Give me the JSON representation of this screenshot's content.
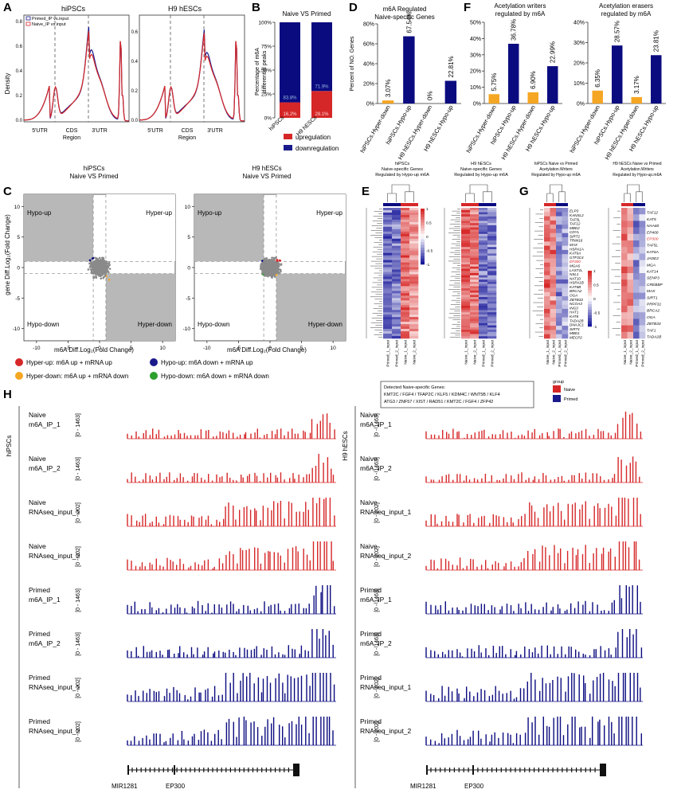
{
  "panel_letters": {
    "A": "A",
    "B": "B",
    "C": "C",
    "D": "D",
    "E": "E",
    "F": "F",
    "G": "G",
    "H": "H"
  },
  "colors": {
    "red": "#d62728",
    "blue": "#1a1a8c",
    "orange": "#f5a623",
    "gray": "#b8b8b8",
    "darkblue": "#0b0b80"
  },
  "panelA": {
    "titles": [
      "hiPSCs",
      "H9 hESCs"
    ],
    "ylabel": "Density",
    "legend": [
      "Primed_IP vs.input",
      "Naive_IP vs.input"
    ],
    "xlabels": {
      "utr5": "5'UTR",
      "cds1": "CDS",
      "cds2": "Region",
      "utr3": "3'UTR"
    },
    "yticks_left": [
      "0.8",
      "0.6",
      "0.4",
      "0.2",
      "0.0"
    ],
    "yticks_right": [
      "0.6",
      "0.4",
      "0.2",
      "0.0"
    ]
  },
  "panelB": {
    "title": "Naive VS Primed",
    "ylabel1": "Percentage of m6A",
    "ylabel2": "differential peaks",
    "yticks": [
      "100%",
      "75%",
      "50%",
      "25%",
      "0%"
    ],
    "categories": [
      "hiPSCs",
      "H9 hESCs"
    ],
    "down_labels": [
      "83.8%",
      "71.9%"
    ],
    "up_labels": [
      "16.2%",
      "28.1%"
    ],
    "legend_up": "upregulation",
    "legend_down": "downregulation"
  },
  "chart_data": [
    {
      "type": "bar",
      "title": "Naive VS Primed",
      "ylabel": "Percentage of m6A differential peaks",
      "categories": [
        "hiPSCs",
        "H9 hESCs"
      ],
      "series": [
        {
          "name": "upregulation",
          "values": [
            16.2,
            28.1
          ]
        },
        {
          "name": "downregulation",
          "values": [
            83.8,
            71.9
          ]
        }
      ],
      "ylim": [
        0,
        100
      ]
    },
    {
      "type": "bar",
      "title": "m6A Regulated Naive-specific Genes",
      "ylabel": "Percent of NO. Genes",
      "categories": [
        "hiPSCs.Hyper-down",
        "hiPSCs.Hypo-up",
        "H9 hESCs.Hyper-down",
        "H9 hESCs.Hypo-up"
      ],
      "values": [
        3.07,
        67.54,
        0,
        22.81
      ],
      "ylim": [
        0,
        80
      ]
    },
    {
      "type": "bar",
      "title": "Acetylation writers regulated by m6A",
      "categories": [
        "hiPSCs.Hyper-down",
        "hiPSCs.Hypo-up",
        "H9 hESCs.Hyper-down",
        "H9 hESCs.Hypo-up"
      ],
      "values": [
        5.75,
        36.78,
        6.9,
        22.99
      ],
      "ylim": [
        0,
        50
      ]
    },
    {
      "type": "bar",
      "title": "Acetylation erasers regulated by m6A",
      "categories": [
        "hiPSCs.Hyper-down",
        "hiPSCs.Hypo-up",
        "H9 hESCs.Hyper-down",
        "H9 hESCs.Hypo-up"
      ],
      "values": [
        6.35,
        28.57,
        3.17,
        23.81
      ],
      "ylim": [
        0,
        40
      ]
    }
  ],
  "panelD": {
    "title1": "m6A Regulated",
    "title2": "Naive-specific Genes",
    "ylabel": "Percent of NO. Genes",
    "yticks": [
      "80%",
      "60%",
      "40%",
      "20%",
      "0%"
    ],
    "bar_labels": [
      "3.07%",
      "67.54%",
      "0%",
      "22.81%"
    ],
    "xcats": [
      "hiPSCs.Hyper-down",
      "hiPSCs.Hypo-up",
      "H9 hESCs.Hyper-down",
      "H9 hESCs.Hypo-up"
    ]
  },
  "panelF": {
    "title1a": "Acetylation writers",
    "title1b": "regulated by m6A",
    "title2a": "Acetylation erasers",
    "title2b": "regulated by m6A",
    "yticks1": [
      "50%",
      "40%",
      "30%",
      "20%",
      "10%",
      "0%"
    ],
    "yticks2": [
      "40%",
      "30%",
      "20%",
      "10%",
      "0%"
    ],
    "labels1": [
      "5.75%",
      "36.78%",
      "6.90%",
      "22.99%"
    ],
    "labels2": [
      "6.35%",
      "28.57%",
      "3.17%",
      "23.81%"
    ],
    "xcats": [
      "hiPSCs.Hyper-down",
      "hiPSCs.Hypo-up",
      "H9 hESCs.Hyper-down",
      "H9 hESCs.Hypo-up"
    ]
  },
  "panelC": {
    "title1a": "hiPSCs",
    "title1b": "Naive VS Primed",
    "title2a": "H9 hESCs",
    "title2b": "Naive VS Primed",
    "ylabel": "gene Diff.Log₂(Fold Change)",
    "xlabel": "m6A Diff.Log₂(Fold Change)",
    "quadrants": {
      "hypo_up": "Hypo-up",
      "hyper_up": "Hyper-up",
      "hypo_down": "Hypo-down",
      "hyper_down": "Hyper-down"
    },
    "xticks": [
      "-10",
      "-5",
      "0",
      "5",
      "10"
    ],
    "yticks": [
      "10",
      "5",
      "0",
      "-5",
      "-10"
    ],
    "legend": [
      "Hyper-up: m6A up + mRNA up",
      "Hypo-up: m6A down + mRNA up",
      "Hyper-down: m6A up + mRNA down",
      "Hypo-down: m6A down + mRNA down"
    ]
  },
  "panelE": {
    "title_left": [
      "hiPSCs",
      "Naive-specific Genes",
      "Regulated by Hypo-up m6A"
    ],
    "title_right": [
      "H9 hESCs",
      "Naive-specific Genes",
      "Regulated by Hypo-up m6A"
    ],
    "scale": [
      "1",
      "0.5",
      "0",
      "-0.5",
      "-1"
    ],
    "cols_left": [
      "Primed_1_input",
      "Primed_2_input",
      "Naive_1_input",
      "Naive_2_input"
    ],
    "cols_right": [
      "Naive_1_input",
      "Naive_2_input",
      "Primed_1_input",
      "Primed_2_input"
    ],
    "detected_title": "Detected Naive-specific Genes:",
    "detected_line1": "KMT2C / FGF4 / TFAP2C / KLF5 / KDM4C / WNT5B / KLF4",
    "detected_line2": "ATG3 / ZNF57 / XIST / RAD51 / KMT2C / FGF4 / ZFP42",
    "group_label": "group",
    "group_naive": "Naive",
    "group_primed": "Primed"
  },
  "panelG": {
    "title_left": [
      "hiPSCs Naive vs Primed",
      "Acetylation.Writers",
      "Regulated by Hypo-up m6A"
    ],
    "title_right": [
      "H9 hESCs Naive vs Primed",
      "Acetylation.Writers",
      "Regulated by Hypo-up.m6A"
    ],
    "genes_left": [
      "ELP3",
      "KANSL2",
      "TAF5L",
      "TAF12",
      "MBD2",
      "CDYL",
      "SIRT2",
      "TRIM16",
      "MAX",
      "HSPA1A",
      "KAT6A",
      "GTF3C4",
      "EP300",
      "MGA6",
      "LAST1L",
      "NSL1",
      "NAT10",
      "HSPA1B",
      "KAT6B",
      "BRCA2",
      "OGA",
      "ZBTB33",
      "NCOA3",
      "ING3",
      "HAT1",
      "KAT8",
      "TADA2B",
      "DNAJC1",
      "SIRT1",
      "MBD1",
      "MECP2"
    ],
    "genes_right": [
      "TAF12",
      "KAT5",
      "NAA60",
      "EP400",
      "EP300",
      "TAF5L",
      "KAT6A",
      "JADE2",
      "MGA",
      "KAT14",
      "SENP3",
      "CREBBP",
      "MAX",
      "SIRT1",
      "PRPF31",
      "BRCA2",
      "OGA",
      "ZBTB33",
      "TAF1",
      "TADA2B"
    ],
    "highlight": "EP300",
    "scale": [
      "1",
      "0.5",
      "0",
      "-0.5",
      "-1"
    ],
    "cols": [
      "Naive_1_input",
      "Naive_2_input",
      "Primed_1_input",
      "Primed_2_input"
    ]
  },
  "panelH": {
    "side_left": "hiPSCs",
    "side_right": "H9 hESCs",
    "tracks": [
      {
        "group": "Naive",
        "name": "m6A_IP_1",
        "range": "[0 - 1463]",
        "color": "red"
      },
      {
        "group": "Naive",
        "name": "m6A_IP_2",
        "range": "[0 - 1463]",
        "color": "red"
      },
      {
        "group": "Naive",
        "name": "RNAseq_input_1",
        "range": "[0 - 202]",
        "color": "red"
      },
      {
        "group": "Naive",
        "name": "RNAseq_input_2",
        "range": "[0 - 202]",
        "color": "red"
      },
      {
        "group": "Primed",
        "name": "m6A_IP_1",
        "range": "[0 - 1463]",
        "color": "blue"
      },
      {
        "group": "Primed",
        "name": "m6A_IP_2",
        "range": "[0 - 1463]",
        "color": "blue"
      },
      {
        "group": "Primed",
        "name": "RNAseq_input_1",
        "range": "[0 - 202]",
        "color": "blue"
      },
      {
        "group": "Primed",
        "name": "RNAseq_input_2",
        "range": "[0 - 202]",
        "color": "blue"
      }
    ],
    "gene1": "MIR1281",
    "gene2": "EP300"
  }
}
